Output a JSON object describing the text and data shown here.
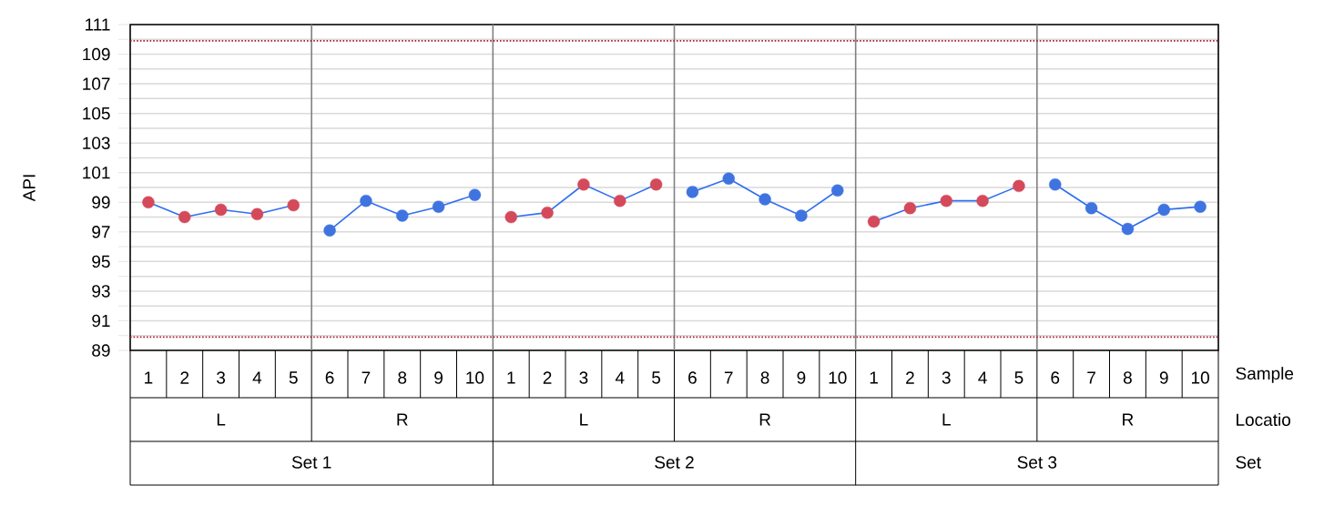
{
  "chart_data": {
    "type": "line",
    "ylabel": "API",
    "categories": [
      "1",
      "2",
      "3",
      "4",
      "5",
      "6",
      "7",
      "8",
      "9",
      "10",
      "1",
      "2",
      "3",
      "4",
      "5",
      "6",
      "7",
      "8",
      "9",
      "10",
      "1",
      "2",
      "3",
      "4",
      "5",
      "6",
      "7",
      "8",
      "9",
      "10"
    ],
    "series": [
      {
        "color": "#2f6ff0",
        "values": [
          99.0,
          98.0,
          98.5,
          98.2,
          98.8,
          null,
          null,
          null,
          null,
          null,
          null,
          null,
          null,
          null,
          null,
          null,
          null,
          null,
          null,
          null,
          null,
          null,
          null,
          null,
          null,
          null,
          null,
          null,
          null,
          null
        ],
        "colors": [
          "#d44a5a",
          "#d44a5a",
          "#d44a5a",
          "#d44a5a",
          "#d44a5a",
          null,
          null,
          null,
          null,
          null,
          null,
          null,
          null,
          null,
          null,
          null,
          null,
          null,
          null,
          null,
          null,
          null,
          null,
          null,
          null,
          null,
          null,
          null,
          null,
          null
        ]
      },
      {
        "color": "#2f6ff0",
        "values": [
          null,
          null,
          null,
          null,
          null,
          97.1,
          99.1,
          98.1,
          98.7,
          99.5,
          null,
          null,
          null,
          null,
          null,
          null,
          null,
          null,
          null,
          null,
          null,
          null,
          null,
          null,
          null,
          null,
          null,
          null,
          null,
          null
        ],
        "colors": [
          null,
          null,
          null,
          null,
          null,
          "#3f74e0",
          "#3f74e0",
          "#3f74e0",
          "#3f74e0",
          "#3f74e0",
          null,
          null,
          null,
          null,
          null,
          null,
          null,
          null,
          null,
          null,
          null,
          null,
          null,
          null,
          null,
          null,
          null,
          null,
          null,
          null
        ]
      },
      {
        "color": "#2f6ff0",
        "values": [
          null,
          null,
          null,
          null,
          null,
          null,
          null,
          null,
          null,
          null,
          98.0,
          98.3,
          100.2,
          99.1,
          100.2,
          null,
          null,
          null,
          null,
          null,
          null,
          null,
          null,
          null,
          null,
          null,
          null,
          null,
          null,
          null
        ],
        "colors": [
          null,
          null,
          null,
          null,
          null,
          null,
          null,
          null,
          null,
          null,
          "#d44a5a",
          "#d44a5a",
          "#d44a5a",
          "#d44a5a",
          "#d44a5a",
          null,
          null,
          null,
          null,
          null,
          null,
          null,
          null,
          null,
          null,
          null,
          null,
          null,
          null,
          null
        ]
      },
      {
        "color": "#2f6ff0",
        "values": [
          null,
          null,
          null,
          null,
          null,
          null,
          null,
          null,
          null,
          null,
          null,
          null,
          null,
          null,
          null,
          99.7,
          100.6,
          99.2,
          98.1,
          99.8,
          null,
          null,
          null,
          null,
          null,
          null,
          null,
          null,
          null,
          null
        ],
        "colors": [
          null,
          null,
          null,
          null,
          null,
          null,
          null,
          null,
          null,
          null,
          null,
          null,
          null,
          null,
          null,
          "#3f74e0",
          "#3f74e0",
          "#3f74e0",
          "#3f74e0",
          "#3f74e0",
          null,
          null,
          null,
          null,
          null,
          null,
          null,
          null,
          null,
          null
        ]
      },
      {
        "color": "#2f6ff0",
        "values": [
          null,
          null,
          null,
          null,
          null,
          null,
          null,
          null,
          null,
          null,
          null,
          null,
          null,
          null,
          null,
          null,
          null,
          null,
          null,
          null,
          97.7,
          98.6,
          99.1,
          99.1,
          100.1,
          null,
          null,
          null,
          null,
          null
        ],
        "colors": [
          null,
          null,
          null,
          null,
          null,
          null,
          null,
          null,
          null,
          null,
          null,
          null,
          null,
          null,
          null,
          null,
          null,
          null,
          null,
          null,
          "#d44a5a",
          "#d44a5a",
          "#d44a5a",
          "#d44a5a",
          "#d44a5a",
          null,
          null,
          null,
          null,
          null
        ]
      },
      {
        "color": "#2f6ff0",
        "values": [
          null,
          null,
          null,
          null,
          null,
          null,
          null,
          null,
          null,
          null,
          null,
          null,
          null,
          null,
          null,
          null,
          null,
          null,
          null,
          null,
          null,
          null,
          null,
          null,
          null,
          100.2,
          98.6,
          97.2,
          98.5,
          98.7
        ],
        "colors": [
          null,
          null,
          null,
          null,
          null,
          null,
          null,
          null,
          null,
          null,
          null,
          null,
          null,
          null,
          null,
          null,
          null,
          null,
          null,
          null,
          null,
          null,
          null,
          null,
          null,
          "#3f74e0",
          "#3f74e0",
          "#3f74e0",
          "#3f74e0",
          "#3f74e0"
        ]
      }
    ],
    "annotations": [
      "L",
      "R",
      "L",
      "R",
      "L",
      "R",
      "Set 1",
      "Set 2",
      "Set 3",
      "Sample",
      "Locatio",
      "Set"
    ],
    "ylim": [
      89,
      111
    ],
    "yticks": [
      89,
      {
        "value": 90,
        "label": null
      },
      91,
      {
        "value": 92,
        "label": null
      },
      93,
      {
        "value": 94,
        "label": null
      },
      95,
      {
        "value": 96,
        "label": null
      },
      97,
      {
        "value": 98,
        "label": null
      },
      99,
      {
        "value": 100,
        "label": null
      },
      101,
      {
        "value": 102,
        "label": null
      },
      103,
      {
        "value": 104,
        "label": null
      },
      105,
      {
        "value": 106,
        "label": null
      },
      107,
      {
        "value": 108,
        "label": null
      },
      109,
      {
        "value": 110,
        "label": null
      },
      111
    ],
    "ref_lines": [
      {
        "axis": "y",
        "value": 89.9,
        "color": "#b0182a",
        "line_style": "dotted"
      },
      {
        "axis": "y",
        "value": 109.9,
        "color": "#b0182a",
        "line_style": "dotted"
      }
    ],
    "grid": "y",
    "marker": "circle",
    "line_style": "solid"
  }
}
